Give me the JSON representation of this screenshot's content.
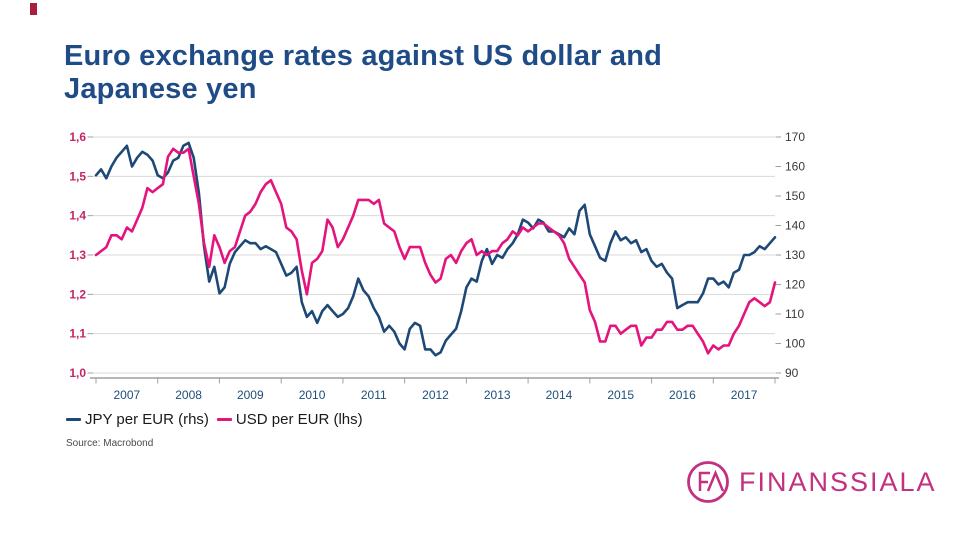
{
  "title": {
    "line1": "Euro exchange rates against US dollar and",
    "line2": "Japanese yen",
    "color": "#1f4c87"
  },
  "source": "Source: Macrobond",
  "decoration": {
    "corner_mark_color": "#a81e3c"
  },
  "logo": {
    "text": "FINANSSIALA",
    "monogram": "FA",
    "color": "#c2307f"
  },
  "chart_data": {
    "type": "line",
    "grid": true,
    "grid_color": "#d9d9d9",
    "axis_line_color": "#8c8c8c",
    "tick_color": "#a0a0a0",
    "x_axis": {
      "min": 2007,
      "max": 2018,
      "years": [
        2007,
        2008,
        2009,
        2010,
        2011,
        2012,
        2013,
        2014,
        2015,
        2016,
        2017
      ],
      "label_color": "#1f4e79"
    },
    "left_axis": {
      "title": "USD per EUR",
      "min": 1.0,
      "max": 1.6,
      "ticks": [
        {
          "v": 1.6,
          "label": "1,6"
        },
        {
          "v": 1.5,
          "label": "1,5"
        },
        {
          "v": 1.4,
          "label": "1,4"
        },
        {
          "v": 1.3,
          "label": "1,3"
        },
        {
          "v": 1.2,
          "label": "1,2"
        },
        {
          "v": 1.1,
          "label": "1,1"
        },
        {
          "v": 1.0,
          "label": "1,0"
        }
      ],
      "label_color": "#c32566"
    },
    "right_axis": {
      "title": "JPY per EUR",
      "min": 90,
      "max": 170,
      "ticks": [
        {
          "v": 170,
          "label": "170"
        },
        {
          "v": 160,
          "label": "160"
        },
        {
          "v": 150,
          "label": "150"
        },
        {
          "v": 140,
          "label": "140"
        },
        {
          "v": 130,
          "label": "130"
        },
        {
          "v": 120,
          "label": "120"
        },
        {
          "v": 110,
          "label": "110"
        },
        {
          "v": 100,
          "label": "100"
        },
        {
          "v": 90,
          "label": "90"
        }
      ],
      "label_color": "#3a3a3a"
    },
    "legend_position": "bottom-left",
    "series": [
      {
        "name": "JPY per EUR (rhs)",
        "axis": "right",
        "color": "#1e4976",
        "start_year": 2007,
        "points_per_year": 12,
        "values": [
          157,
          159,
          156,
          160,
          163,
          165,
          167,
          160,
          163,
          165,
          164,
          162,
          157,
          156,
          158,
          162,
          163,
          167,
          168,
          163,
          151,
          133,
          121,
          126,
          117,
          119,
          127,
          131,
          133,
          135,
          134,
          134,
          132,
          133,
          132,
          131,
          127,
          123,
          124,
          126,
          114,
          109,
          111,
          107,
          111,
          113,
          111,
          109,
          110,
          112,
          116,
          122,
          118,
          116,
          112,
          109,
          104,
          106,
          104,
          100,
          98,
          105,
          107,
          106,
          98,
          98,
          96,
          97,
          101,
          103,
          105,
          111,
          119,
          122,
          121,
          128,
          132,
          127,
          130,
          129,
          132,
          134,
          137,
          142,
          141,
          139,
          142,
          141,
          138,
          138,
          137,
          136,
          139,
          137,
          145,
          147,
          137,
          133,
          129,
          128,
          134,
          138,
          135,
          136,
          134,
          135,
          131,
          132,
          128,
          126,
          127,
          124,
          122,
          112,
          113,
          114,
          114,
          114,
          117,
          122,
          122,
          120,
          121,
          119,
          124,
          125,
          130,
          130,
          131,
          133,
          132,
          134,
          136
        ]
      },
      {
        "name": "USD per EUR (lhs)",
        "axis": "left",
        "color": "#e5137d",
        "start_year": 2007,
        "points_per_year": 12,
        "values": [
          1.3,
          1.31,
          1.32,
          1.35,
          1.35,
          1.34,
          1.37,
          1.36,
          1.39,
          1.42,
          1.47,
          1.46,
          1.47,
          1.48,
          1.55,
          1.57,
          1.56,
          1.56,
          1.57,
          1.5,
          1.43,
          1.33,
          1.27,
          1.35,
          1.32,
          1.28,
          1.31,
          1.32,
          1.36,
          1.4,
          1.41,
          1.43,
          1.46,
          1.48,
          1.49,
          1.46,
          1.43,
          1.37,
          1.36,
          1.34,
          1.26,
          1.2,
          1.28,
          1.29,
          1.31,
          1.39,
          1.37,
          1.32,
          1.34,
          1.37,
          1.4,
          1.44,
          1.44,
          1.44,
          1.43,
          1.44,
          1.38,
          1.37,
          1.36,
          1.32,
          1.29,
          1.32,
          1.32,
          1.32,
          1.28,
          1.25,
          1.23,
          1.24,
          1.29,
          1.3,
          1.28,
          1.31,
          1.33,
          1.34,
          1.3,
          1.31,
          1.3,
          1.31,
          1.31,
          1.33,
          1.34,
          1.36,
          1.35,
          1.37,
          1.36,
          1.37,
          1.38,
          1.38,
          1.37,
          1.36,
          1.35,
          1.33,
          1.29,
          1.27,
          1.25,
          1.23,
          1.16,
          1.13,
          1.08,
          1.08,
          1.12,
          1.12,
          1.1,
          1.11,
          1.12,
          1.12,
          1.07,
          1.09,
          1.09,
          1.11,
          1.11,
          1.13,
          1.13,
          1.11,
          1.11,
          1.12,
          1.12,
          1.1,
          1.08,
          1.05,
          1.07,
          1.06,
          1.07,
          1.07,
          1.1,
          1.12,
          1.15,
          1.18,
          1.19,
          1.18,
          1.17,
          1.18,
          1.23
        ]
      }
    ]
  }
}
